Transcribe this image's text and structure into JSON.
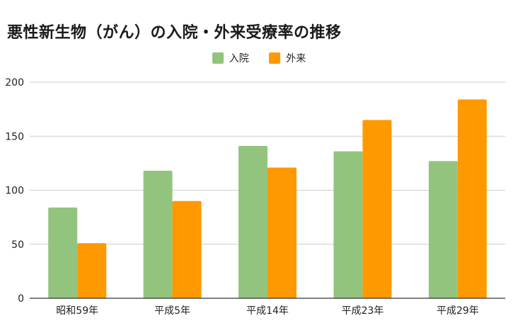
{
  "chart_data": {
    "type": "bar",
    "title": "悪性新生物（がん）の入院・外来受療率の推移",
    "categories": [
      "昭和59年",
      "平成5年",
      "平成14年",
      "平成23年",
      "平成29年"
    ],
    "series": [
      {
        "name": "入院",
        "color": "#93c47d",
        "values": [
          84,
          118,
          141,
          136,
          127
        ]
      },
      {
        "name": "外来",
        "color": "#ff9900",
        "values": [
          51,
          90,
          121,
          165,
          184
        ]
      }
    ],
    "ylim": [
      0,
      200
    ],
    "yticks": [
      0,
      50,
      100,
      150,
      200
    ],
    "grid": true,
    "legend_position": "top-center",
    "xlabel": "",
    "ylabel": ""
  }
}
